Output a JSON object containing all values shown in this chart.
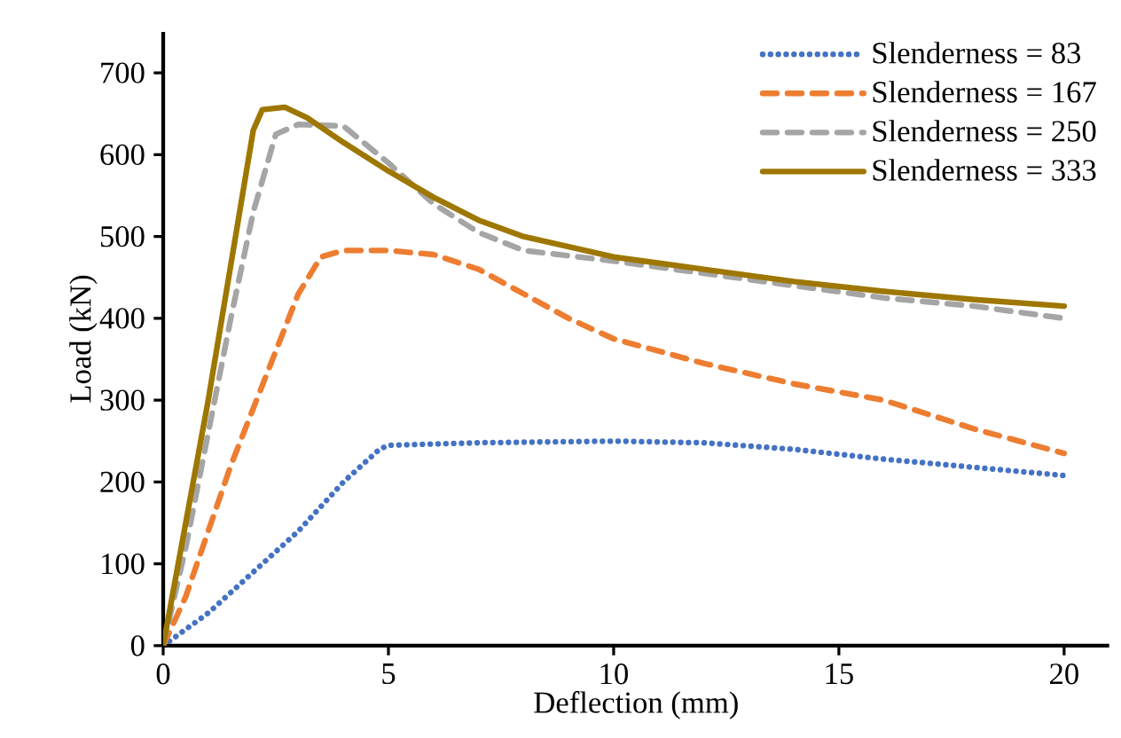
{
  "chart_data": {
    "type": "line",
    "xlabel": "Deflection (mm)",
    "ylabel": "Load (kN)",
    "xlim": [
      0,
      21
    ],
    "ylim": [
      0,
      750
    ],
    "xticks": [
      0,
      5,
      10,
      15,
      20
    ],
    "yticks": [
      0,
      100,
      200,
      300,
      400,
      500,
      600,
      700
    ],
    "grid": false,
    "legend": "top right",
    "marker": "none",
    "series": [
      {
        "name": "Slenderness = 83",
        "color": "#4472c4",
        "line_style": "dotted",
        "x": [
          0,
          1,
          2,
          3,
          4,
          4.8,
          5,
          7,
          10,
          12,
          14,
          16,
          18,
          20
        ],
        "values": [
          0,
          40,
          90,
          140,
          200,
          240,
          245,
          248,
          250,
          248,
          240,
          228,
          218,
          208
        ]
      },
      {
        "name": "Slenderness = 167",
        "color": "#ed7d31",
        "line_style": "dashed",
        "x": [
          0,
          0.5,
          1,
          1.5,
          2,
          2.5,
          3,
          3.5,
          4,
          5,
          6,
          7,
          8,
          9,
          10,
          12,
          14,
          16,
          18,
          20
        ],
        "values": [
          0,
          60,
          140,
          220,
          290,
          360,
          430,
          475,
          483,
          483,
          478,
          460,
          430,
          400,
          375,
          345,
          320,
          300,
          265,
          235
        ]
      },
      {
        "name": "Slenderness = 250",
        "color": "#a5a5a5",
        "line_style": "dashed",
        "x": [
          0,
          0.5,
          1,
          1.5,
          2,
          2.5,
          3,
          4,
          5,
          6,
          7,
          8,
          10,
          12,
          14,
          16,
          18,
          20
        ],
        "values": [
          0,
          120,
          260,
          400,
          530,
          625,
          637,
          635,
          590,
          540,
          505,
          483,
          470,
          455,
          440,
          425,
          415,
          400
        ]
      },
      {
        "name": "Slenderness = 333",
        "color": "#9e7700",
        "line_style": "solid",
        "x": [
          0,
          1,
          2,
          2.2,
          2.7,
          3.2,
          4,
          5,
          6,
          7,
          8,
          10,
          12,
          14,
          16,
          18,
          20
        ],
        "values": [
          0,
          300,
          630,
          655,
          658,
          645,
          615,
          580,
          548,
          520,
          500,
          475,
          460,
          445,
          433,
          423,
          415
        ]
      }
    ]
  }
}
